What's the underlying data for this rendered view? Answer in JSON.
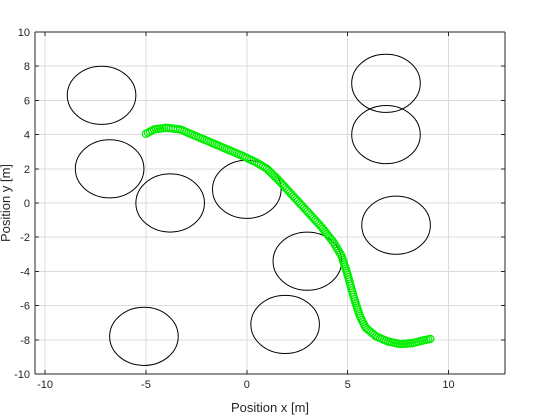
{
  "chart_data": {
    "type": "scatter",
    "title": "",
    "xlabel": "Position x [m]",
    "ylabel": "Position y [m]",
    "xlim": [
      -10.5,
      12.8
    ],
    "ylim": [
      -10,
      10
    ],
    "xticks": [
      -10,
      -5,
      0,
      5,
      10
    ],
    "yticks": [
      -10,
      -8,
      -6,
      -4,
      -2,
      0,
      2,
      4,
      6,
      8,
      10
    ],
    "xtick_labels": [
      "-10",
      "-5",
      "0",
      "5",
      "10"
    ],
    "ytick_labels": [
      "-10",
      "-8",
      "-6",
      "-4",
      "-2",
      "0",
      "2",
      "4",
      "6",
      "8",
      "10"
    ],
    "grid": true,
    "obstacle_radius": 1.7,
    "obstacles": [
      {
        "x": -7.2,
        "y": 6.3
      },
      {
        "x": -6.8,
        "y": 2.0
      },
      {
        "x": -3.8,
        "y": 0.0
      },
      {
        "x": 0.0,
        "y": 0.8
      },
      {
        "x": 3.0,
        "y": -3.4
      },
      {
        "x": 1.9,
        "y": -7.1
      },
      {
        "x": -5.1,
        "y": -7.8
      },
      {
        "x": 6.9,
        "y": 7.0
      },
      {
        "x": 6.9,
        "y": 4.0
      },
      {
        "x": 7.4,
        "y": -1.3
      }
    ],
    "trajectory": {
      "color": "#00ee00",
      "points": [
        [
          -5.0,
          4.05
        ],
        [
          -4.6,
          4.3
        ],
        [
          -4.0,
          4.4
        ],
        [
          -3.3,
          4.3
        ],
        [
          -2.6,
          3.95
        ],
        [
          -1.8,
          3.55
        ],
        [
          -1.0,
          3.15
        ],
        [
          -0.2,
          2.75
        ],
        [
          0.5,
          2.35
        ],
        [
          1.0,
          2.0
        ],
        [
          1.6,
          1.3
        ],
        [
          2.3,
          0.4
        ],
        [
          3.0,
          -0.5
        ],
        [
          3.7,
          -1.4
        ],
        [
          4.3,
          -2.3
        ],
        [
          4.7,
          -3.1
        ],
        [
          5.0,
          -4.2
        ],
        [
          5.3,
          -5.5
        ],
        [
          5.6,
          -6.6
        ],
        [
          5.9,
          -7.3
        ],
        [
          6.4,
          -7.8
        ],
        [
          7.0,
          -8.1
        ],
        [
          7.6,
          -8.25
        ],
        [
          8.2,
          -8.2
        ],
        [
          8.7,
          -8.05
        ],
        [
          9.1,
          -7.95
        ]
      ]
    }
  }
}
